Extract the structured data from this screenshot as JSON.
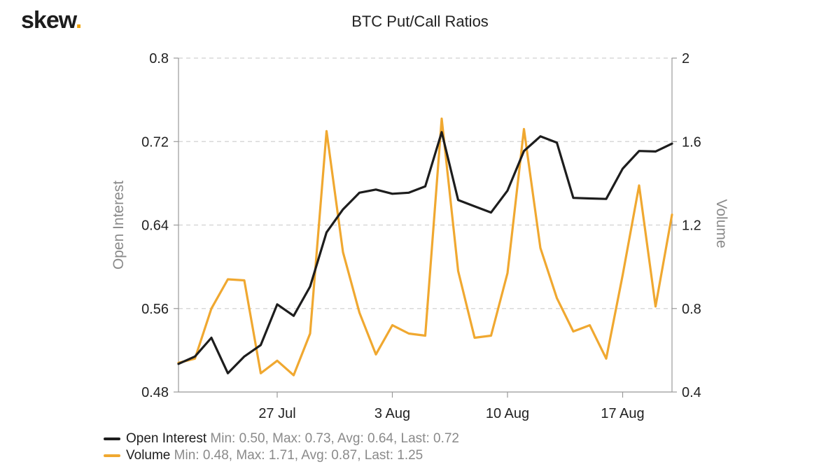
{
  "brand": {
    "logo_text": "skew",
    "logo_dot": ".",
    "accent": "#f0a30a"
  },
  "chart_data": {
    "type": "line",
    "title": "BTC Put/Call Ratios",
    "xlabel": "",
    "x_tick_labels": [
      "27 Jul",
      "3 Aug",
      "10 Aug",
      "17 Aug"
    ],
    "x_tick_dates": [
      "2020-07-27",
      "2020-08-03",
      "2020-08-10",
      "2020-08-17"
    ],
    "x": [
      "2020-07-21",
      "2020-07-22",
      "2020-07-23",
      "2020-07-24",
      "2020-07-25",
      "2020-07-26",
      "2020-07-27",
      "2020-07-28",
      "2020-07-29",
      "2020-07-30",
      "2020-07-31",
      "2020-08-01",
      "2020-08-02",
      "2020-08-03",
      "2020-08-04",
      "2020-08-05",
      "2020-08-06",
      "2020-08-07",
      "2020-08-08",
      "2020-08-09",
      "2020-08-10",
      "2020-08-11",
      "2020-08-12",
      "2020-08-13",
      "2020-08-14",
      "2020-08-15",
      "2020-08-16",
      "2020-08-17",
      "2020-08-18",
      "2020-08-19",
      "2020-08-20"
    ],
    "y_left": {
      "label": "Open Interest",
      "range": [
        0.48,
        0.8
      ],
      "ticks": [
        "0.48",
        "0.56",
        "0.64",
        "0.72",
        "0.8"
      ]
    },
    "y_right": {
      "label": "Volume",
      "range": [
        0.4,
        2
      ],
      "ticks": [
        "0.4",
        "0.8",
        "1.2",
        "1.6",
        "2"
      ]
    },
    "grid": true,
    "legend_position": "bottom-left",
    "series": [
      {
        "name": "Open Interest",
        "axis": "left",
        "color": "#1d1d1d",
        "stats": "Min: 0.50, Max: 0.73, Avg: 0.64, Last: 0.72",
        "values": [
          0.507,
          0.514,
          0.532,
          0.498,
          0.514,
          0.525,
          0.564,
          0.553,
          0.581,
          0.633,
          0.655,
          0.671,
          0.674,
          0.67,
          0.671,
          0.677,
          0.729,
          0.664,
          0.658,
          0.652,
          0.673,
          0.711,
          0.725,
          0.719,
          0.666,
          0.6655,
          0.665,
          0.694,
          0.711,
          0.7105,
          0.718
        ]
      },
      {
        "name": "Volume",
        "axis": "right",
        "color": "#f0a830",
        "stats": "Min: 0.48, Max: 1.71, Avg: 0.87, Last: 1.25",
        "values": [
          0.54,
          0.56,
          0.8,
          0.94,
          0.935,
          0.49,
          0.55,
          0.48,
          0.68,
          1.65,
          1.07,
          0.78,
          0.58,
          0.72,
          0.68,
          0.67,
          1.71,
          0.98,
          0.66,
          0.67,
          0.97,
          1.66,
          1.09,
          0.85,
          0.69,
          0.72,
          0.56,
          0.96,
          1.39,
          0.81,
          1.25
        ]
      }
    ]
  }
}
